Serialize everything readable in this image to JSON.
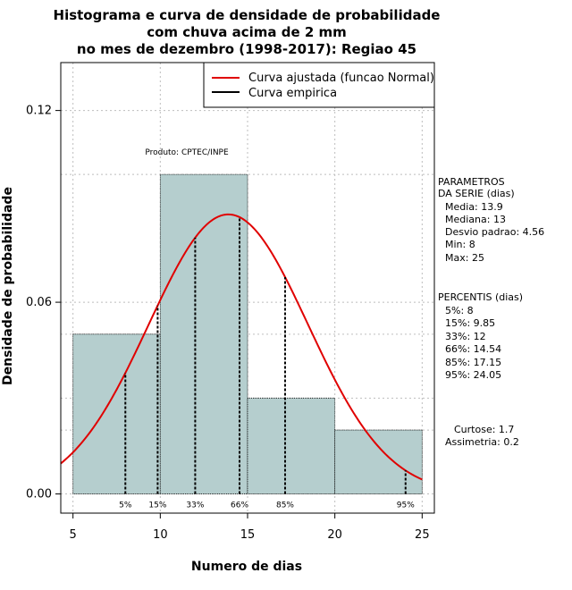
{
  "chart_data": {
    "type": "histogram",
    "title_lines": [
      "Histograma e curva de densidade de probabilidade",
      "com chuva acima de 2 mm",
      "no mes de dezembro (1998-2017): Regiao 45"
    ],
    "xlabel": "Numero de dias",
    "ylabel": "Densidade de probabilidade",
    "xlim": [
      4.3,
      25.7
    ],
    "ylim": [
      -0.006,
      0.135
    ],
    "x_ticks": [
      5,
      10,
      15,
      20,
      25
    ],
    "y_ticks": [
      0.0,
      0.06,
      0.12
    ],
    "y_tick_labels": [
      "0.00",
      "0.06",
      "0.12"
    ],
    "grid": true,
    "bars": [
      {
        "x0": 5,
        "x1": 10,
        "density": 0.05
      },
      {
        "x0": 10,
        "x1": 15,
        "density": 0.1
      },
      {
        "x0": 15,
        "x1": 20,
        "density": 0.03
      },
      {
        "x0": 20,
        "x1": 25,
        "density": 0.02
      }
    ],
    "bar_color": "#b5cece",
    "normal_curve": {
      "mean": 13.9,
      "sd": 4.56,
      "color": "#e00000"
    },
    "percentile_lines": [
      {
        "label": "5%",
        "x": 8
      },
      {
        "label": "15%",
        "x": 9.85
      },
      {
        "label": "33%",
        "x": 12
      },
      {
        "label": "66%",
        "x": 14.54
      },
      {
        "label": "85%",
        "x": 17.15
      },
      {
        "label": "95%",
        "x": 24.05
      }
    ],
    "legend": {
      "position": "top-right",
      "items": [
        {
          "label": "Curva ajustada (funcao Normal)",
          "color": "#e00000"
        },
        {
          "label": "Curva empirica",
          "color": "#000000"
        }
      ]
    },
    "annotations": {
      "producer": "Produto: CPTEC/INPE",
      "params_title_1": "PARAMETROS",
      "params_title_2": "DA SERIE (dias)",
      "params": [
        "Media: 13.9",
        "Mediana: 13",
        "Desvio padrao: 4.56",
        "Min: 8",
        "Max: 25"
      ],
      "percentis_title": "PERCENTIS (dias)",
      "percentis": [
        "5%: 8",
        "15%: 9.85",
        "33%: 12",
        "66%: 14.54",
        "85%: 17.15",
        "95%: 24.05"
      ],
      "curtose": "Curtose: 1.7",
      "assimetria": "Assimetria: 0.2"
    }
  }
}
